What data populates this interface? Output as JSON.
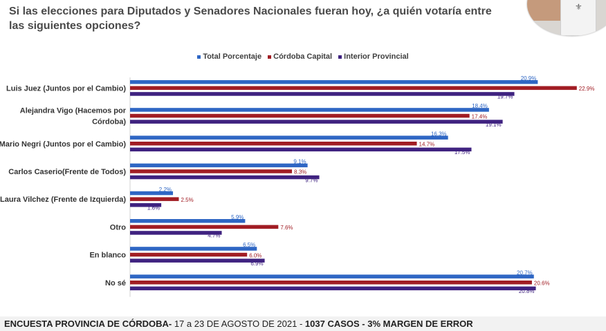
{
  "title": "Si las elecciones para Diputados y Senadores Nacionales fueran hoy, ¿a quién votaría entre las siguientes opciones?",
  "photo": {
    "label": "⚜"
  },
  "colors": {
    "total": "#2e66c4",
    "capital": "#a11d24",
    "interior": "#3f2280"
  },
  "footer": {
    "bold1": "ENCUESTA PROVINCIA DE CÓRDOBA-",
    "normal": " 17 a 23 DE AGOSTO DE 2021 - ",
    "bold2": "1037 CASOS - 3% MARGEN DE ERROR"
  },
  "chart_data": {
    "type": "bar",
    "orientation": "horizontal",
    "title": "Si las elecciones para Diputados y Senadores Nacionales fueran hoy, ¿a quién votaría entre las siguientes opciones?",
    "legend_position": "top-center",
    "grid": false,
    "categories": [
      "Luis Juez (Juntos por el Cambio)",
      "Alejandra Vigo (Hacemos por Córdoba)",
      "Mario Negri (Juntos por el Cambio)",
      "Carlos Caserio(Frente de Todos)",
      "Laura Vilchez (Frente de Izquierda)",
      "Otro",
      "En blanco",
      "No sé"
    ],
    "category_lines": [
      [
        "Luis Juez (Juntos por el Cambio)"
      ],
      [
        "Alejandra Vigo (Hacemos por",
        "Córdoba)"
      ],
      [
        "Mario Negri (Juntos por el Cambio)"
      ],
      [
        "Carlos Caserio(Frente de Todos)"
      ],
      [
        "Laura Vilchez (Frente de Izquierda)"
      ],
      [
        "Otro"
      ],
      [
        "En blanco"
      ],
      [
        "No sé"
      ]
    ],
    "series": [
      {
        "name": "Total Porcentaje",
        "key": "total",
        "values": [
          20.9,
          18.4,
          16.3,
          9.1,
          2.2,
          5.9,
          6.5,
          20.7
        ],
        "labels": [
          "20.9%",
          "18.4%",
          "16.3%",
          "9.1%",
          "2.2%",
          "5.9%",
          "6.5%",
          "20.7%"
        ]
      },
      {
        "name": "Córdoba Capital",
        "key": "capital",
        "values": [
          22.9,
          17.4,
          14.7,
          8.3,
          2.5,
          7.6,
          6.0,
          20.6
        ],
        "labels": [
          "22.9%",
          "17.4%",
          "14.7%",
          "8.3%",
          "2.5%",
          "7.6%",
          "6.0%",
          "20.6%"
        ]
      },
      {
        "name": "Interior Provincial",
        "key": "interior",
        "values": [
          19.7,
          19.1,
          17.5,
          9.7,
          1.6,
          4.7,
          6.9,
          20.8
        ],
        "labels": [
          "19.7%",
          "19.1%",
          "17.5%",
          "9.7%",
          "1.6%",
          "4.7%",
          "6.9%",
          "20.8%"
        ]
      }
    ],
    "xlim": [
      0,
      25
    ],
    "unit": "%"
  }
}
